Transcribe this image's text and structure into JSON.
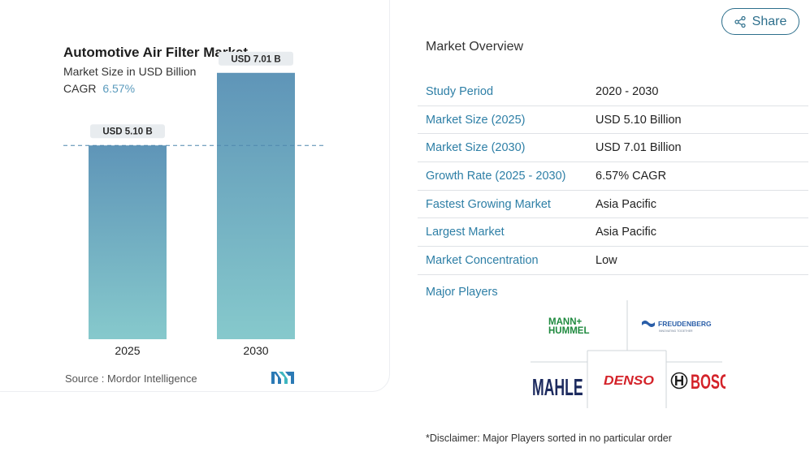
{
  "chart_data": {
    "type": "bar",
    "title": "Automotive Air Filter Market",
    "subtitle": "Market Size in USD Billion",
    "cagr_label": "CAGR",
    "cagr_value": "6.57%",
    "categories": [
      "2025",
      "2030"
    ],
    "values": [
      5.1,
      7.01
    ],
    "data_labels": [
      "USD 5.10 B",
      "USD 7.01 B"
    ],
    "ylim": [
      0,
      8.5
    ],
    "colors": {
      "bar_top": "#5f95b8",
      "bar_bottom": "#86c9cc",
      "reference_line": "#4f87ad",
      "label_bg": "#e8ecef"
    },
    "source": "Source :  Mordor Intelligence"
  },
  "share": {
    "label": "Share",
    "icon": "share-icon"
  },
  "overview": {
    "heading": "Market Overview",
    "rows": [
      {
        "label": "Study Period",
        "value": "2020 - 2030"
      },
      {
        "label": "Market Size (2025)",
        "value": "USD 5.10 Billion"
      },
      {
        "label": "Market Size (2030)",
        "value": "USD 7.01 Billion"
      },
      {
        "label": "Growth Rate (2025 - 2030)",
        "value": "6.57% CAGR"
      },
      {
        "label": "Fastest Growing Market",
        "value": "Asia Pacific"
      },
      {
        "label": "Largest Market",
        "value": "Asia Pacific"
      },
      {
        "label": "Market Concentration",
        "value": "Low"
      }
    ]
  },
  "players": {
    "heading": "Major Players",
    "logos": [
      {
        "name": "MANN+HUMMEL",
        "line1": "MANN+",
        "line2": "HUMMEL",
        "color": "#1f8a3f"
      },
      {
        "name": "FREUDENBERG",
        "line1": "FREUDENBERG",
        "tagline": "INNOVATING TOGETHER",
        "color": "#2a5ea8"
      },
      {
        "name": "MAHLE",
        "text": "MAHLE",
        "color": "#1c2a5e"
      },
      {
        "name": "DENSO",
        "text": "DENSO",
        "color": "#d4232a"
      },
      {
        "name": "BOSCH",
        "text": "BOSCH",
        "color": "#d4232a"
      }
    ],
    "disclaimer": "*Disclaimer: Major Players sorted in no particular order"
  }
}
